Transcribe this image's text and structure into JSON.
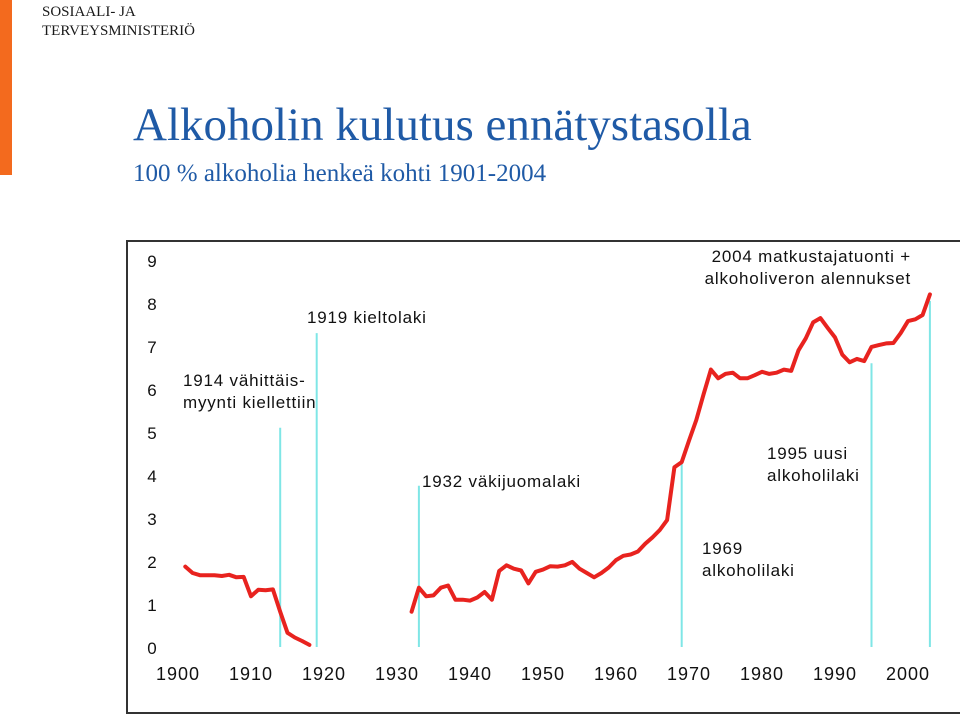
{
  "header": {
    "org_line1": "SOSIAALI- JA",
    "org_line2": "TERVEYSMINISTERIÖ",
    "title": "Alkoholin kulutus ennätystasolla",
    "subtitle": "100 % alkoholia henkeä kohti 1901-2004"
  },
  "colors": {
    "title": "#1f5aa6",
    "series": "#e8231f",
    "markers": "#7fe6e6",
    "brand_strip": "#f36a1e"
  },
  "chart_data": {
    "type": "line",
    "title": "",
    "xlabel": "",
    "ylabel": "",
    "xlim": [
      1900,
      2004
    ],
    "ylim": [
      0,
      9
    ],
    "x_ticks": [
      "1900",
      "1910",
      "1920",
      "1930",
      "1940",
      "1950",
      "1960",
      "1970",
      "1980",
      "1990",
      "2000"
    ],
    "y_ticks": [
      "0",
      "1",
      "2",
      "3",
      "4",
      "5",
      "6",
      "7",
      "8",
      "9"
    ],
    "grid": false,
    "segments": [
      {
        "points": [
          [
            1901,
            1.87
          ],
          [
            1902,
            1.72
          ],
          [
            1903,
            1.67
          ],
          [
            1904,
            1.67
          ],
          [
            1905,
            1.67
          ],
          [
            1906,
            1.65
          ],
          [
            1907,
            1.68
          ],
          [
            1908,
            1.62
          ],
          [
            1909,
            1.63
          ],
          [
            1910,
            1.18
          ],
          [
            1911,
            1.33
          ],
          [
            1912,
            1.32
          ],
          [
            1913,
            1.34
          ],
          [
            1914,
            0.82
          ],
          [
            1915,
            0.33
          ],
          [
            1916,
            0.22
          ],
          [
            1917,
            0.14
          ],
          [
            1918,
            0.05
          ]
        ]
      },
      {
        "points": [
          [
            1932,
            0.82
          ],
          [
            1933,
            1.38
          ],
          [
            1934,
            1.18
          ],
          [
            1935,
            1.2
          ],
          [
            1936,
            1.38
          ],
          [
            1937,
            1.43
          ],
          [
            1938,
            1.1
          ],
          [
            1939,
            1.1
          ],
          [
            1940,
            1.08
          ],
          [
            1941,
            1.15
          ],
          [
            1942,
            1.28
          ],
          [
            1943,
            1.1
          ],
          [
            1944,
            1.77
          ],
          [
            1945,
            1.9
          ],
          [
            1946,
            1.82
          ],
          [
            1947,
            1.78
          ],
          [
            1948,
            1.48
          ],
          [
            1949,
            1.75
          ],
          [
            1950,
            1.8
          ],
          [
            1951,
            1.88
          ],
          [
            1952,
            1.87
          ],
          [
            1953,
            1.9
          ],
          [
            1954,
            1.98
          ],
          [
            1955,
            1.82
          ],
          [
            1956,
            1.72
          ],
          [
            1957,
            1.62
          ],
          [
            1958,
            1.72
          ],
          [
            1959,
            1.85
          ],
          [
            1960,
            2.02
          ],
          [
            1961,
            2.12
          ],
          [
            1962,
            2.15
          ],
          [
            1963,
            2.22
          ],
          [
            1964,
            2.4
          ],
          [
            1965,
            2.55
          ],
          [
            1966,
            2.72
          ],
          [
            1967,
            2.95
          ],
          [
            1968,
            4.18
          ],
          [
            1969,
            4.3
          ],
          [
            1970,
            4.8
          ],
          [
            1971,
            5.28
          ],
          [
            1972,
            5.88
          ],
          [
            1973,
            6.45
          ],
          [
            1974,
            6.25
          ],
          [
            1975,
            6.35
          ],
          [
            1976,
            6.38
          ],
          [
            1977,
            6.25
          ],
          [
            1978,
            6.25
          ],
          [
            1979,
            6.32
          ],
          [
            1980,
            6.4
          ],
          [
            1981,
            6.35
          ],
          [
            1982,
            6.38
          ],
          [
            1983,
            6.45
          ],
          [
            1984,
            6.42
          ],
          [
            1985,
            6.9
          ],
          [
            1986,
            7.18
          ],
          [
            1987,
            7.55
          ],
          [
            1988,
            7.65
          ],
          [
            1989,
            7.42
          ],
          [
            1990,
            7.2
          ],
          [
            1991,
            6.8
          ],
          [
            1992,
            6.62
          ],
          [
            1993,
            6.7
          ],
          [
            1994,
            6.65
          ],
          [
            1995,
            6.98
          ],
          [
            1996,
            7.02
          ],
          [
            1997,
            7.06
          ],
          [
            1998,
            7.07
          ],
          [
            1999,
            7.3
          ],
          [
            2000,
            7.58
          ],
          [
            2001,
            7.62
          ],
          [
            2002,
            7.72
          ],
          [
            2003,
            8.2
          ]
        ]
      }
    ],
    "markers": [
      {
        "x": 1914,
        "top": 5.1
      },
      {
        "x": 1919,
        "top": 7.3
      },
      {
        "x": 1933,
        "top": 3.75
      },
      {
        "x": 1969,
        "top": 4.3
      },
      {
        "x": 1995,
        "top": 6.6
      },
      {
        "x": 2003,
        "top": 8.05
      }
    ],
    "annotations": [
      {
        "lines": [
          "1914 vähittäis-",
          "myynti kiellettiin"
        ]
      },
      {
        "lines": [
          "1919 kieltolaki"
        ]
      },
      {
        "lines": [
          "1932 väkijuomalaki"
        ]
      },
      {
        "lines": [
          "1969",
          "alkoholilaki"
        ]
      },
      {
        "lines": [
          "1995 uusi",
          "alkoholilaki"
        ]
      },
      {
        "lines": [
          "2004 matkustajatuonti +",
          "alkoholiveron alennukset"
        ]
      }
    ]
  }
}
